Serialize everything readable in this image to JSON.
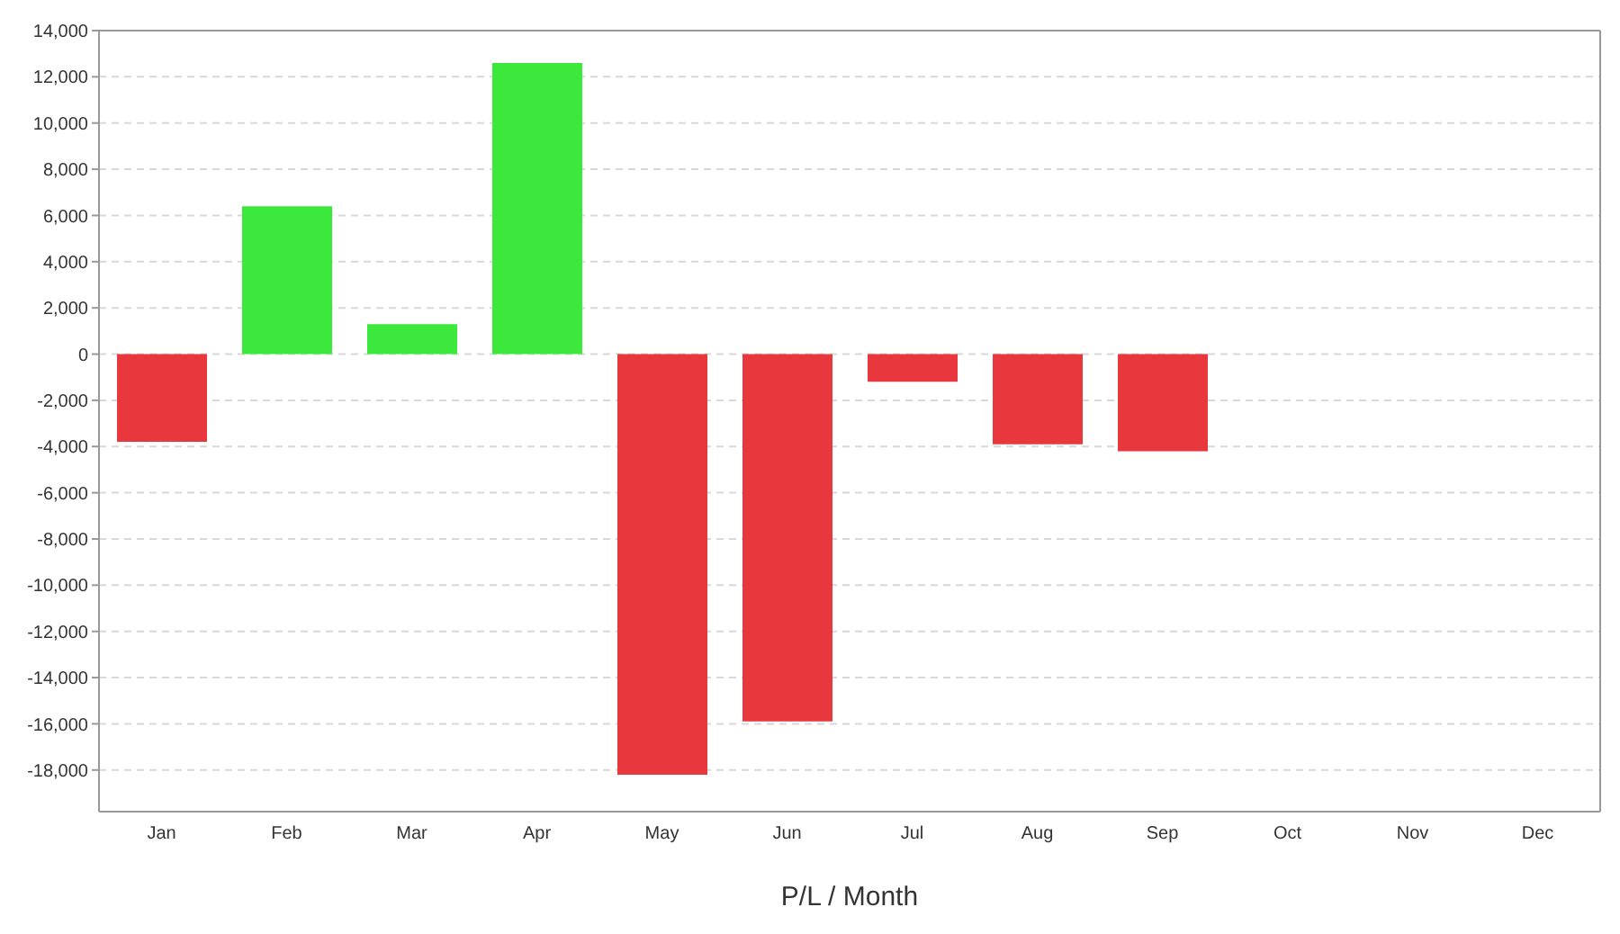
{
  "chart_data": {
    "type": "bar",
    "xlabel": "P/L / Month",
    "categories": [
      "Jan",
      "Feb",
      "Mar",
      "Apr",
      "May",
      "Jun",
      "Jul",
      "Aug",
      "Sep",
      "Oct",
      "Nov",
      "Dec"
    ],
    "values": [
      -3800,
      6400,
      1300,
      12600,
      -18200,
      -15900,
      -1200,
      -3900,
      -4200,
      null,
      null,
      null
    ],
    "colors": [
      "#e8373d",
      "#3de83d",
      "#3de83d",
      "#3de83d",
      "#e8373d",
      "#e8373d",
      "#e8373d",
      "#e8373d",
      "#e8373d",
      "#e8373d",
      "#e8373d",
      "#e8373d"
    ],
    "ylim": [
      -19800,
      14000
    ],
    "yticks": [
      {
        "value": -18000,
        "label": "-18,000"
      },
      {
        "value": -16000,
        "label": "-16,000"
      },
      {
        "value": -14000,
        "label": "-14,000"
      },
      {
        "value": -12000,
        "label": "-12,000"
      },
      {
        "value": -10000,
        "label": "-10,000"
      },
      {
        "value": -8000,
        "label": "-8,000"
      },
      {
        "value": -6000,
        "label": "-6,000"
      },
      {
        "value": -4000,
        "label": "-4,000"
      },
      {
        "value": -2000,
        "label": "-2,000"
      },
      {
        "value": 0,
        "label": "0"
      },
      {
        "value": 2000,
        "label": "2,000"
      },
      {
        "value": 4000,
        "label": "4,000"
      },
      {
        "value": 6000,
        "label": "6,000"
      },
      {
        "value": 8000,
        "label": "8,000"
      },
      {
        "value": 10000,
        "label": "10,000"
      },
      {
        "value": 12000,
        "label": "12,000"
      },
      {
        "value": 14000,
        "label": "14,000"
      }
    ],
    "grid": "y",
    "legend": false
  }
}
